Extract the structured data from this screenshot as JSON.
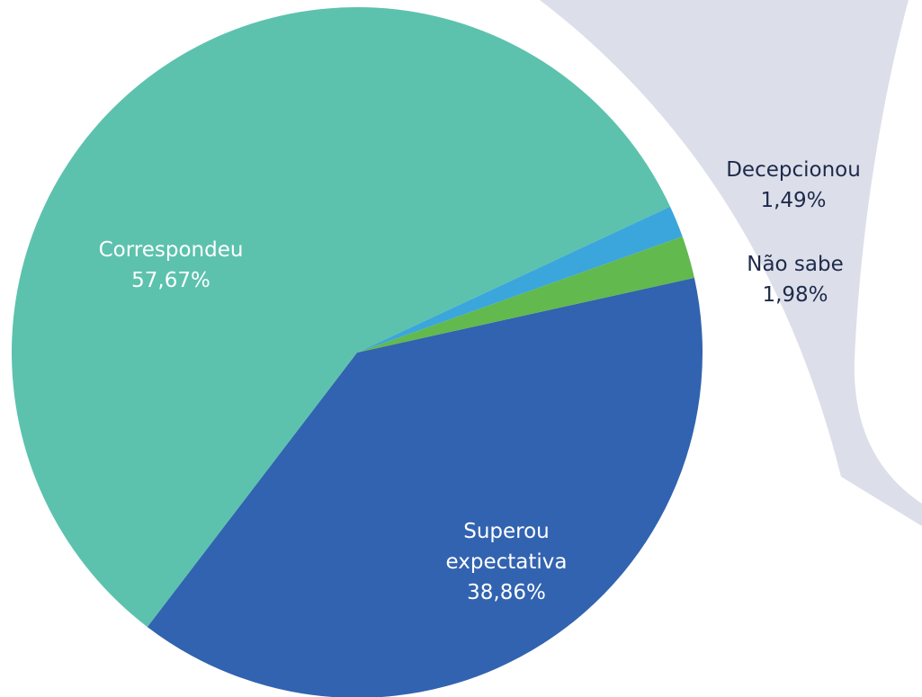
{
  "chart_data": {
    "type": "pie",
    "categories": [
      "Superou expectativa",
      "Correspondeu",
      "Decepcionou",
      "Não sabe"
    ],
    "values": [
      38.86,
      57.67,
      1.49,
      1.98
    ],
    "value_labels": [
      "38,86%",
      "57,67%",
      "1,49%",
      "1,98%"
    ],
    "colors": [
      "#3263b0",
      "#5cc2ad",
      "#3aa6dc",
      "#62b94e"
    ]
  }
}
